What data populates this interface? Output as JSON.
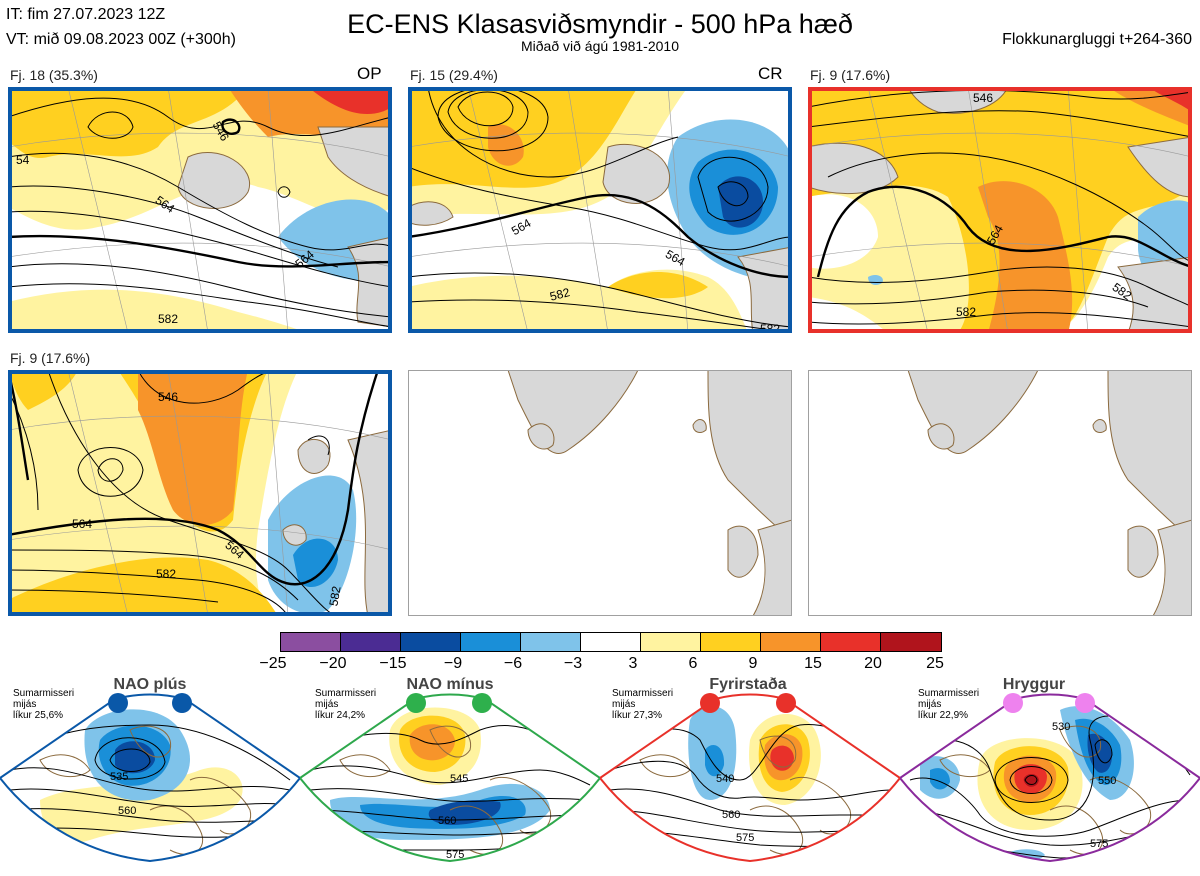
{
  "header": {
    "it": "IT: fim 27.07.2023 12Z",
    "vt": "VT: mið 09.08.2023 00Z  (+300h)",
    "title": "EC-ENS Klasasviðsmyndir - 500 hPa hæð",
    "subtitle": "Miðað við ágú 1981-2010",
    "window": "Flokkunargluggi t+264-360"
  },
  "colors": {
    "land": "#d8d8d8",
    "coast": "#8b6a3e",
    "frame_nao_plus": "#0a58a8",
    "frame_fyrirstada": "#e8312a",
    "frame_nao_minus": "#2ea84c",
    "frame_hryggur": "#8a2a9c"
  },
  "panels": [
    {
      "label": "Fj. 18 (35.3%)",
      "tag": "OP",
      "frame": "#0a58a8",
      "contours": [
        {
          "text": "54"
        },
        {
          "text": "546"
        },
        {
          "text": "564"
        },
        {
          "text": "564"
        },
        {
          "text": "582"
        }
      ]
    },
    {
      "label": "Fj. 15 (29.4%)",
      "tag": "CR",
      "frame": "#0a58a8",
      "contours": [
        {
          "text": "564"
        },
        {
          "text": "564"
        },
        {
          "text": "582"
        },
        {
          "text": "582"
        }
      ]
    },
    {
      "label": "Fj. 9 (17.6%)",
      "tag": "",
      "frame": "#e8312a",
      "contours": [
        {
          "text": "546"
        },
        {
          "text": "564"
        },
        {
          "text": "582"
        },
        {
          "text": "582"
        }
      ]
    },
    {
      "label": "Fj. 9 (17.6%)",
      "tag": "",
      "frame": "#0a58a8",
      "contours": [
        {
          "text": "546"
        },
        {
          "text": "564"
        },
        {
          "text": "564"
        },
        {
          "text": "582"
        },
        {
          "text": "582"
        }
      ]
    },
    {
      "label": "",
      "tag": "",
      "frame": "#a0a0a0",
      "contours": []
    },
    {
      "label": "",
      "tag": "",
      "frame": "#a0a0a0",
      "contours": []
    }
  ],
  "colorbar": {
    "labels": [
      "−25",
      "−20",
      "−15",
      "−9",
      "−6",
      "−3",
      "3",
      "6",
      "9",
      "15",
      "20",
      "25"
    ],
    "colors": [
      "#8b4ea0",
      "#4b2c93",
      "#0a4ca0",
      "#1a8fd8",
      "#7fc3ea",
      "#ffffff",
      "#fff3a0",
      "#ffd020",
      "#f7942a",
      "#e8312a",
      "#b0141c"
    ]
  },
  "regimes": [
    {
      "name": "NAO plús",
      "season": "Sumarmisseri\nmijás\nlíkur 25,6%",
      "dot": "#0a58a8",
      "frame": "#0a58a8",
      "contours": [
        {
          "text": "535"
        },
        {
          "text": "560"
        }
      ]
    },
    {
      "name": "NAO mínus",
      "season": "Sumarmisseri\nmijás\nlíkur 24,2%",
      "dot": "#2eb04c",
      "frame": "#2ea84c",
      "contours": [
        {
          "text": "545"
        },
        {
          "text": "560"
        },
        {
          "text": "575"
        }
      ]
    },
    {
      "name": "Fyrirstaða",
      "season": "Sumarmisseri\nmijás\nlíkur 27,3%",
      "dot": "#e8312a",
      "frame": "#e8312a",
      "contours": [
        {
          "text": "540"
        },
        {
          "text": "560"
        },
        {
          "text": "575"
        }
      ]
    },
    {
      "name": "Hryggur",
      "season": "Sumarmisseri\nmijás\nlíkur 22,9%",
      "dot": "#ee82ee",
      "frame": "#8a2a9c",
      "contours": [
        {
          "text": "530"
        },
        {
          "text": "550"
        },
        {
          "text": "575"
        }
      ]
    }
  ]
}
